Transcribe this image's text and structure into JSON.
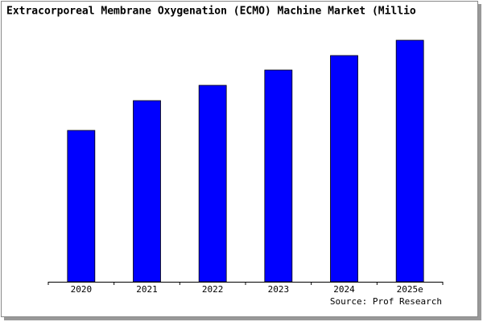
{
  "chart_data": {
    "type": "bar",
    "title": "Extracorporeal Membrane Oxygenation (ECMO) Machine Market (Millio",
    "categories": [
      "2020",
      "2021",
      "2022",
      "2023",
      "2024",
      "2025e"
    ],
    "values": [
      188,
      225,
      244,
      263,
      281,
      300
    ],
    "color": "#0000ff",
    "source": "Source: Prof Research"
  }
}
